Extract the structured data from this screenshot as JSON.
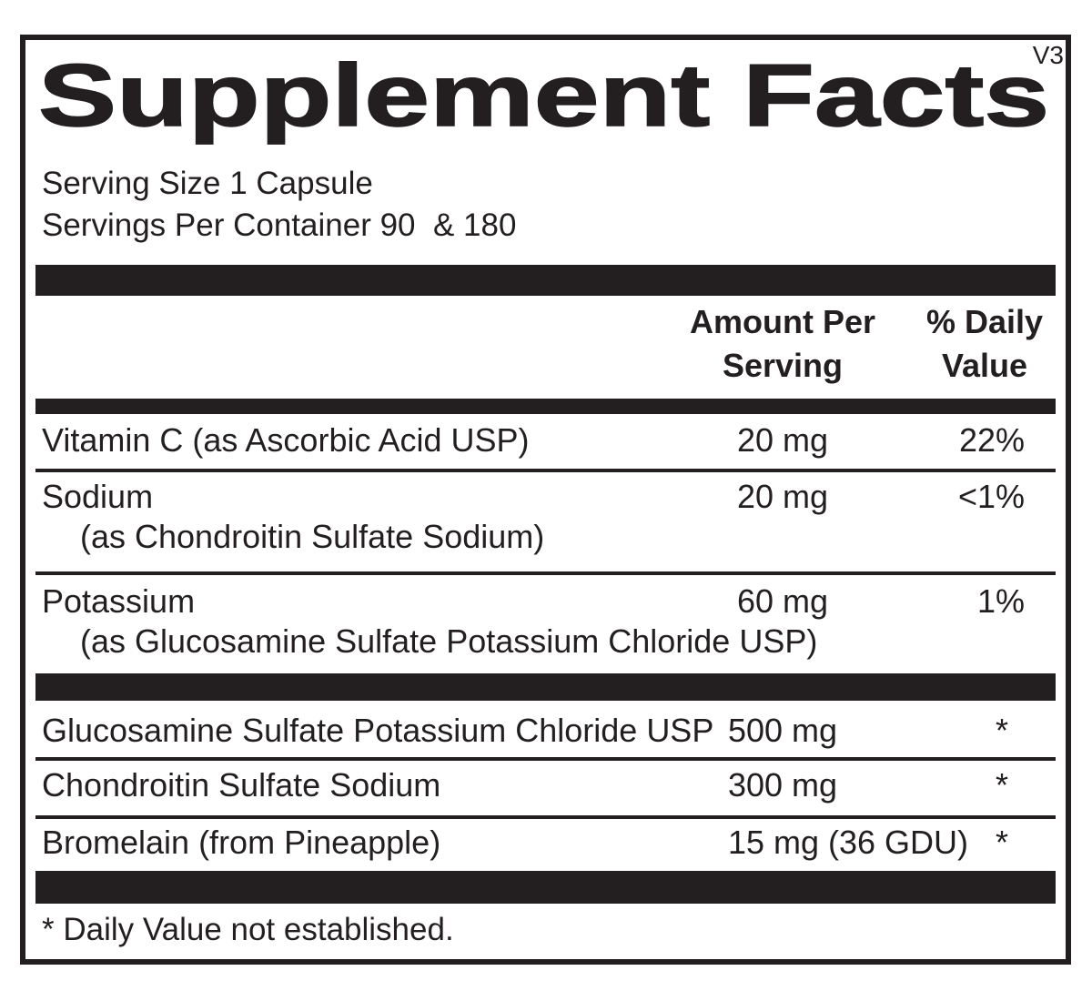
{
  "label": {
    "version": "V3",
    "title": "Supplement Facts",
    "serving_info": "Serving Size 1 Capsule\nServings Per Container 90  & 180",
    "header": {
      "amount_column": "Amount Per\nServing",
      "daily_value_column": "% Daily\nValue"
    },
    "nutrients": [
      {
        "name": "Vitamin C (as Ascorbic Acid USP)",
        "sub": "",
        "amount": "20 mg",
        "daily_value": "22%"
      },
      {
        "name": "Sodium",
        "sub": "(as Chondroitin Sulfate Sodium)",
        "amount": "20 mg",
        "daily_value": "<1%"
      },
      {
        "name": "Potassium",
        "sub": "(as Glucosamine Sulfate Potassium Chloride USP)",
        "amount": "60 mg",
        "daily_value": "1%"
      }
    ],
    "ingredients": [
      {
        "name": "Glucosamine Sulfate Potassium Chloride USP",
        "amount": "500 mg",
        "daily_value": "*"
      },
      {
        "name": "Chondroitin Sulfate Sodium",
        "amount": "300 mg",
        "daily_value": "*"
      },
      {
        "name": "Bromelain (from Pineapple)",
        "amount": "15 mg (36 GDU)",
        "daily_value": "*"
      }
    ],
    "footnote": "* Daily Value not established.",
    "colors": {
      "ink": "#231f20",
      "background": "#ffffff"
    }
  }
}
